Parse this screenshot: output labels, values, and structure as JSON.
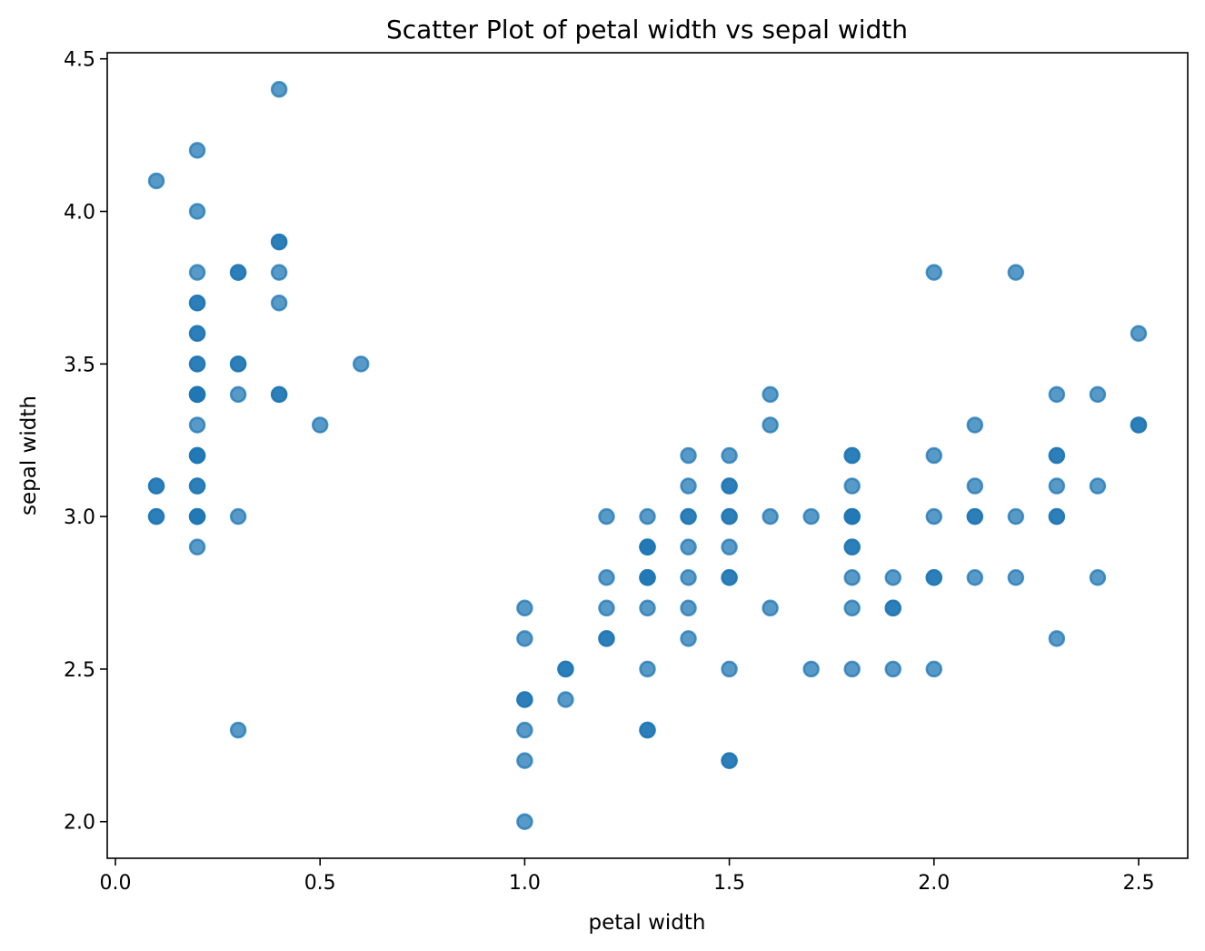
{
  "chart_data": {
    "type": "scatter",
    "title": "Scatter Plot of petal width vs sepal width",
    "xlabel": "petal width",
    "ylabel": "sepal width",
    "xlim": [
      -0.02,
      2.62
    ],
    "ylim": [
      1.88,
      4.52
    ],
    "x_ticks": [
      0.0,
      0.5,
      1.0,
      1.5,
      2.0,
      2.5
    ],
    "x_tick_labels": [
      "0.0",
      "0.5",
      "1.0",
      "1.5",
      "2.0",
      "2.5"
    ],
    "y_ticks": [
      2.0,
      2.5,
      3.0,
      3.5,
      4.0,
      4.5
    ],
    "y_tick_labels": [
      "2.0",
      "2.5",
      "3.0",
      "3.5",
      "4.0",
      "4.5"
    ],
    "grid": false,
    "marker_color": "#1f77b4",
    "marker_opacity": 0.75,
    "points": [
      [
        0.1,
        4.1
      ],
      [
        0.1,
        3.1
      ],
      [
        0.1,
        3.1
      ],
      [
        0.1,
        3.0
      ],
      [
        0.1,
        3.0
      ],
      [
        0.2,
        4.2
      ],
      [
        0.2,
        4.0
      ],
      [
        0.2,
        3.8
      ],
      [
        0.2,
        3.7
      ],
      [
        0.2,
        3.7
      ],
      [
        0.2,
        3.6
      ],
      [
        0.2,
        3.6
      ],
      [
        0.2,
        3.5
      ],
      [
        0.2,
        3.5
      ],
      [
        0.2,
        3.4
      ],
      [
        0.2,
        3.4
      ],
      [
        0.2,
        3.4
      ],
      [
        0.2,
        3.4
      ],
      [
        0.2,
        3.3
      ],
      [
        0.2,
        3.2
      ],
      [
        0.2,
        3.2
      ],
      [
        0.2,
        3.2
      ],
      [
        0.2,
        3.1
      ],
      [
        0.2,
        3.1
      ],
      [
        0.2,
        3.0
      ],
      [
        0.2,
        3.0
      ],
      [
        0.2,
        3.0
      ],
      [
        0.2,
        2.9
      ],
      [
        0.3,
        3.8
      ],
      [
        0.3,
        3.8
      ],
      [
        0.3,
        3.5
      ],
      [
        0.3,
        3.5
      ],
      [
        0.3,
        3.4
      ],
      [
        0.3,
        3.0
      ],
      [
        0.3,
        2.3
      ],
      [
        0.4,
        4.4
      ],
      [
        0.4,
        3.9
      ],
      [
        0.4,
        3.9
      ],
      [
        0.4,
        3.8
      ],
      [
        0.4,
        3.7
      ],
      [
        0.4,
        3.4
      ],
      [
        0.4,
        3.4
      ],
      [
        0.5,
        3.3
      ],
      [
        0.6,
        3.5
      ],
      [
        1.0,
        2.7
      ],
      [
        1.0,
        2.6
      ],
      [
        1.0,
        2.4
      ],
      [
        1.0,
        2.4
      ],
      [
        1.0,
        2.3
      ],
      [
        1.0,
        2.2
      ],
      [
        1.0,
        2.0
      ],
      [
        1.1,
        2.5
      ],
      [
        1.1,
        2.5
      ],
      [
        1.1,
        2.4
      ],
      [
        1.2,
        3.0
      ],
      [
        1.2,
        2.8
      ],
      [
        1.2,
        2.7
      ],
      [
        1.2,
        2.6
      ],
      [
        1.2,
        2.6
      ],
      [
        1.3,
        3.0
      ],
      [
        1.3,
        2.9
      ],
      [
        1.3,
        2.9
      ],
      [
        1.3,
        2.9
      ],
      [
        1.3,
        2.8
      ],
      [
        1.3,
        2.8
      ],
      [
        1.3,
        2.8
      ],
      [
        1.3,
        2.7
      ],
      [
        1.3,
        2.5
      ],
      [
        1.3,
        2.3
      ],
      [
        1.3,
        2.3
      ],
      [
        1.4,
        3.2
      ],
      [
        1.4,
        3.1
      ],
      [
        1.4,
        3.0
      ],
      [
        1.4,
        3.0
      ],
      [
        1.4,
        2.9
      ],
      [
        1.4,
        2.8
      ],
      [
        1.4,
        2.7
      ],
      [
        1.4,
        2.6
      ],
      [
        1.5,
        3.2
      ],
      [
        1.5,
        3.1
      ],
      [
        1.5,
        3.1
      ],
      [
        1.5,
        3.0
      ],
      [
        1.5,
        3.0
      ],
      [
        1.5,
        2.9
      ],
      [
        1.5,
        2.8
      ],
      [
        1.5,
        2.8
      ],
      [
        1.5,
        2.5
      ],
      [
        1.5,
        2.2
      ],
      [
        1.5,
        2.2
      ],
      [
        1.6,
        3.4
      ],
      [
        1.6,
        3.3
      ],
      [
        1.6,
        3.0
      ],
      [
        1.6,
        2.7
      ],
      [
        1.7,
        3.0
      ],
      [
        1.7,
        2.5
      ],
      [
        1.8,
        3.2
      ],
      [
        1.8,
        3.2
      ],
      [
        1.8,
        3.1
      ],
      [
        1.8,
        3.0
      ],
      [
        1.8,
        3.0
      ],
      [
        1.8,
        3.0
      ],
      [
        1.8,
        2.9
      ],
      [
        1.8,
        2.9
      ],
      [
        1.8,
        2.8
      ],
      [
        1.8,
        2.7
      ],
      [
        1.8,
        2.5
      ],
      [
        1.9,
        2.8
      ],
      [
        1.9,
        2.7
      ],
      [
        1.9,
        2.7
      ],
      [
        1.9,
        2.5
      ],
      [
        2.0,
        3.8
      ],
      [
        2.0,
        3.2
      ],
      [
        2.0,
        3.0
      ],
      [
        2.0,
        2.8
      ],
      [
        2.0,
        2.8
      ],
      [
        2.0,
        2.5
      ],
      [
        2.1,
        3.3
      ],
      [
        2.1,
        3.1
      ],
      [
        2.1,
        3.0
      ],
      [
        2.1,
        3.0
      ],
      [
        2.1,
        2.8
      ],
      [
        2.2,
        3.8
      ],
      [
        2.2,
        3.0
      ],
      [
        2.2,
        2.8
      ],
      [
        2.3,
        3.4
      ],
      [
        2.3,
        3.2
      ],
      [
        2.3,
        3.2
      ],
      [
        2.3,
        3.1
      ],
      [
        2.3,
        3.0
      ],
      [
        2.3,
        3.0
      ],
      [
        2.3,
        2.6
      ],
      [
        2.4,
        3.4
      ],
      [
        2.4,
        3.1
      ],
      [
        2.4,
        2.8
      ],
      [
        2.5,
        3.6
      ],
      [
        2.5,
        3.3
      ],
      [
        2.5,
        3.3
      ]
    ]
  }
}
